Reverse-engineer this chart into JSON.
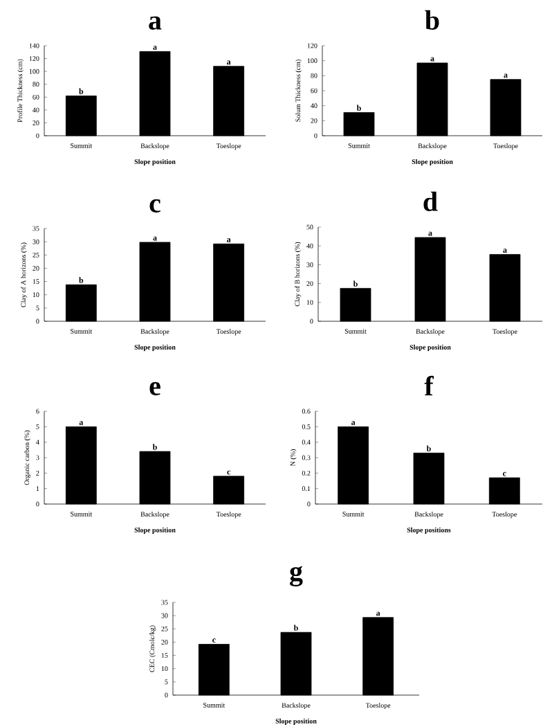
{
  "chart_data": [
    {
      "type": "bar",
      "title": "a",
      "xlabel": "Slope position",
      "ylabel": "Profile Thickness (cm)",
      "categories": [
        "Summit",
        "Backslope",
        "Toeslope"
      ],
      "values": [
        62,
        131,
        108
      ],
      "color": "#000000",
      "ylim": [
        0,
        140
      ],
      "yticks": [
        0,
        20,
        40,
        60,
        80,
        100,
        120,
        140
      ],
      "annotations": [
        {
          "text": "b",
          "x": "Summit",
          "y": 62
        },
        {
          "text": "a",
          "x": "Backslope",
          "y": 131
        },
        {
          "text": "a",
          "x": "Toeslope",
          "y": 108
        }
      ]
    },
    {
      "type": "bar",
      "title": "b",
      "xlabel": "Slope position",
      "ylabel": "Solum Thickness (cm)",
      "categories": [
        "Summit",
        "Backslope",
        "Toeslope"
      ],
      "values": [
        31,
        97,
        75
      ],
      "color": "#000000",
      "ylim": [
        0,
        120
      ],
      "yticks": [
        0,
        20,
        40,
        60,
        80,
        100,
        120
      ],
      "annotations": [
        {
          "text": "b",
          "x": "Summit",
          "y": 31
        },
        {
          "text": "a",
          "x": "Backslope",
          "y": 97
        },
        {
          "text": "a",
          "x": "Toeslope",
          "y": 75
        }
      ]
    },
    {
      "type": "bar",
      "title": "c",
      "xlabel": "Slope position",
      "ylabel": "Clay of A horizons (%)",
      "categories": [
        "Summit",
        "Backslope",
        "Toeslope"
      ],
      "values": [
        13.8,
        29.8,
        29.2
      ],
      "color": "#000000",
      "ylim": [
        0,
        35
      ],
      "yticks": [
        0,
        5,
        10,
        15,
        20,
        25,
        30,
        35
      ],
      "annotations": [
        {
          "text": "b",
          "x": "Summit",
          "y": 13.8
        },
        {
          "text": "a",
          "x": "Backslope",
          "y": 29.8
        },
        {
          "text": "a",
          "x": "Toeslope",
          "y": 29.2
        }
      ]
    },
    {
      "type": "bar",
      "title": "d",
      "xlabel": "Slope position",
      "ylabel": "Clay of B horizons (%)",
      "categories": [
        "Summit",
        "Backslope",
        "Toeslope"
      ],
      "values": [
        17.5,
        44.5,
        35.5
      ],
      "color": "#000000",
      "ylim": [
        0,
        50
      ],
      "yticks": [
        0,
        10,
        20,
        30,
        40,
        50
      ],
      "annotations": [
        {
          "text": "b",
          "x": "Summit",
          "y": 17.5
        },
        {
          "text": "a",
          "x": "Backslope",
          "y": 44.5
        },
        {
          "text": "a",
          "x": "Toeslope",
          "y": 35.5
        }
      ]
    },
    {
      "type": "bar",
      "title": "e",
      "xlabel": "Slope position",
      "ylabel": "Organic carbon (%)",
      "categories": [
        "Summit",
        "Backslope",
        "Toeslope"
      ],
      "values": [
        5.0,
        3.4,
        1.8
      ],
      "color": "#000000",
      "ylim": [
        0,
        6
      ],
      "yticks": [
        0,
        1,
        2,
        3,
        4,
        5,
        6
      ],
      "annotations": [
        {
          "text": "a",
          "x": "Summit",
          "y": 5.0
        },
        {
          "text": "b",
          "x": "Backslope",
          "y": 3.4
        },
        {
          "text": "c",
          "x": "Toeslope",
          "y": 1.8
        }
      ]
    },
    {
      "type": "bar",
      "title": "f",
      "xlabel": "Slope positions",
      "ylabel": "N (%)",
      "categories": [
        "Summit",
        "Backslope",
        "Toeslope"
      ],
      "values": [
        0.5,
        0.33,
        0.17
      ],
      "color": "#000000",
      "ylim": [
        0,
        0.6
      ],
      "yticks": [
        0,
        0.1,
        0.2,
        0.3,
        0.4,
        0.5,
        0.6
      ],
      "annotations": [
        {
          "text": "a",
          "x": "Summit",
          "y": 0.5
        },
        {
          "text": "b",
          "x": "Backslope",
          "y": 0.33
        },
        {
          "text": "c",
          "x": "Toeslope",
          "y": 0.17
        }
      ]
    },
    {
      "type": "bar",
      "title": "g",
      "xlabel": "Slope position",
      "ylabel": "CEC (Cmolc/kg)",
      "categories": [
        "Summit",
        "Backslope",
        "Toeslope"
      ],
      "values": [
        19.2,
        23.7,
        29.3
      ],
      "color": "#000000",
      "ylim": [
        0,
        35
      ],
      "yticks": [
        0,
        5,
        10,
        15,
        20,
        25,
        30,
        35
      ],
      "annotations": [
        {
          "text": "c",
          "x": "Summit",
          "y": 19.2
        },
        {
          "text": "b",
          "x": "Backslope",
          "y": 23.7
        },
        {
          "text": "a",
          "x": "Toeslope",
          "y": 29.3
        }
      ]
    }
  ]
}
